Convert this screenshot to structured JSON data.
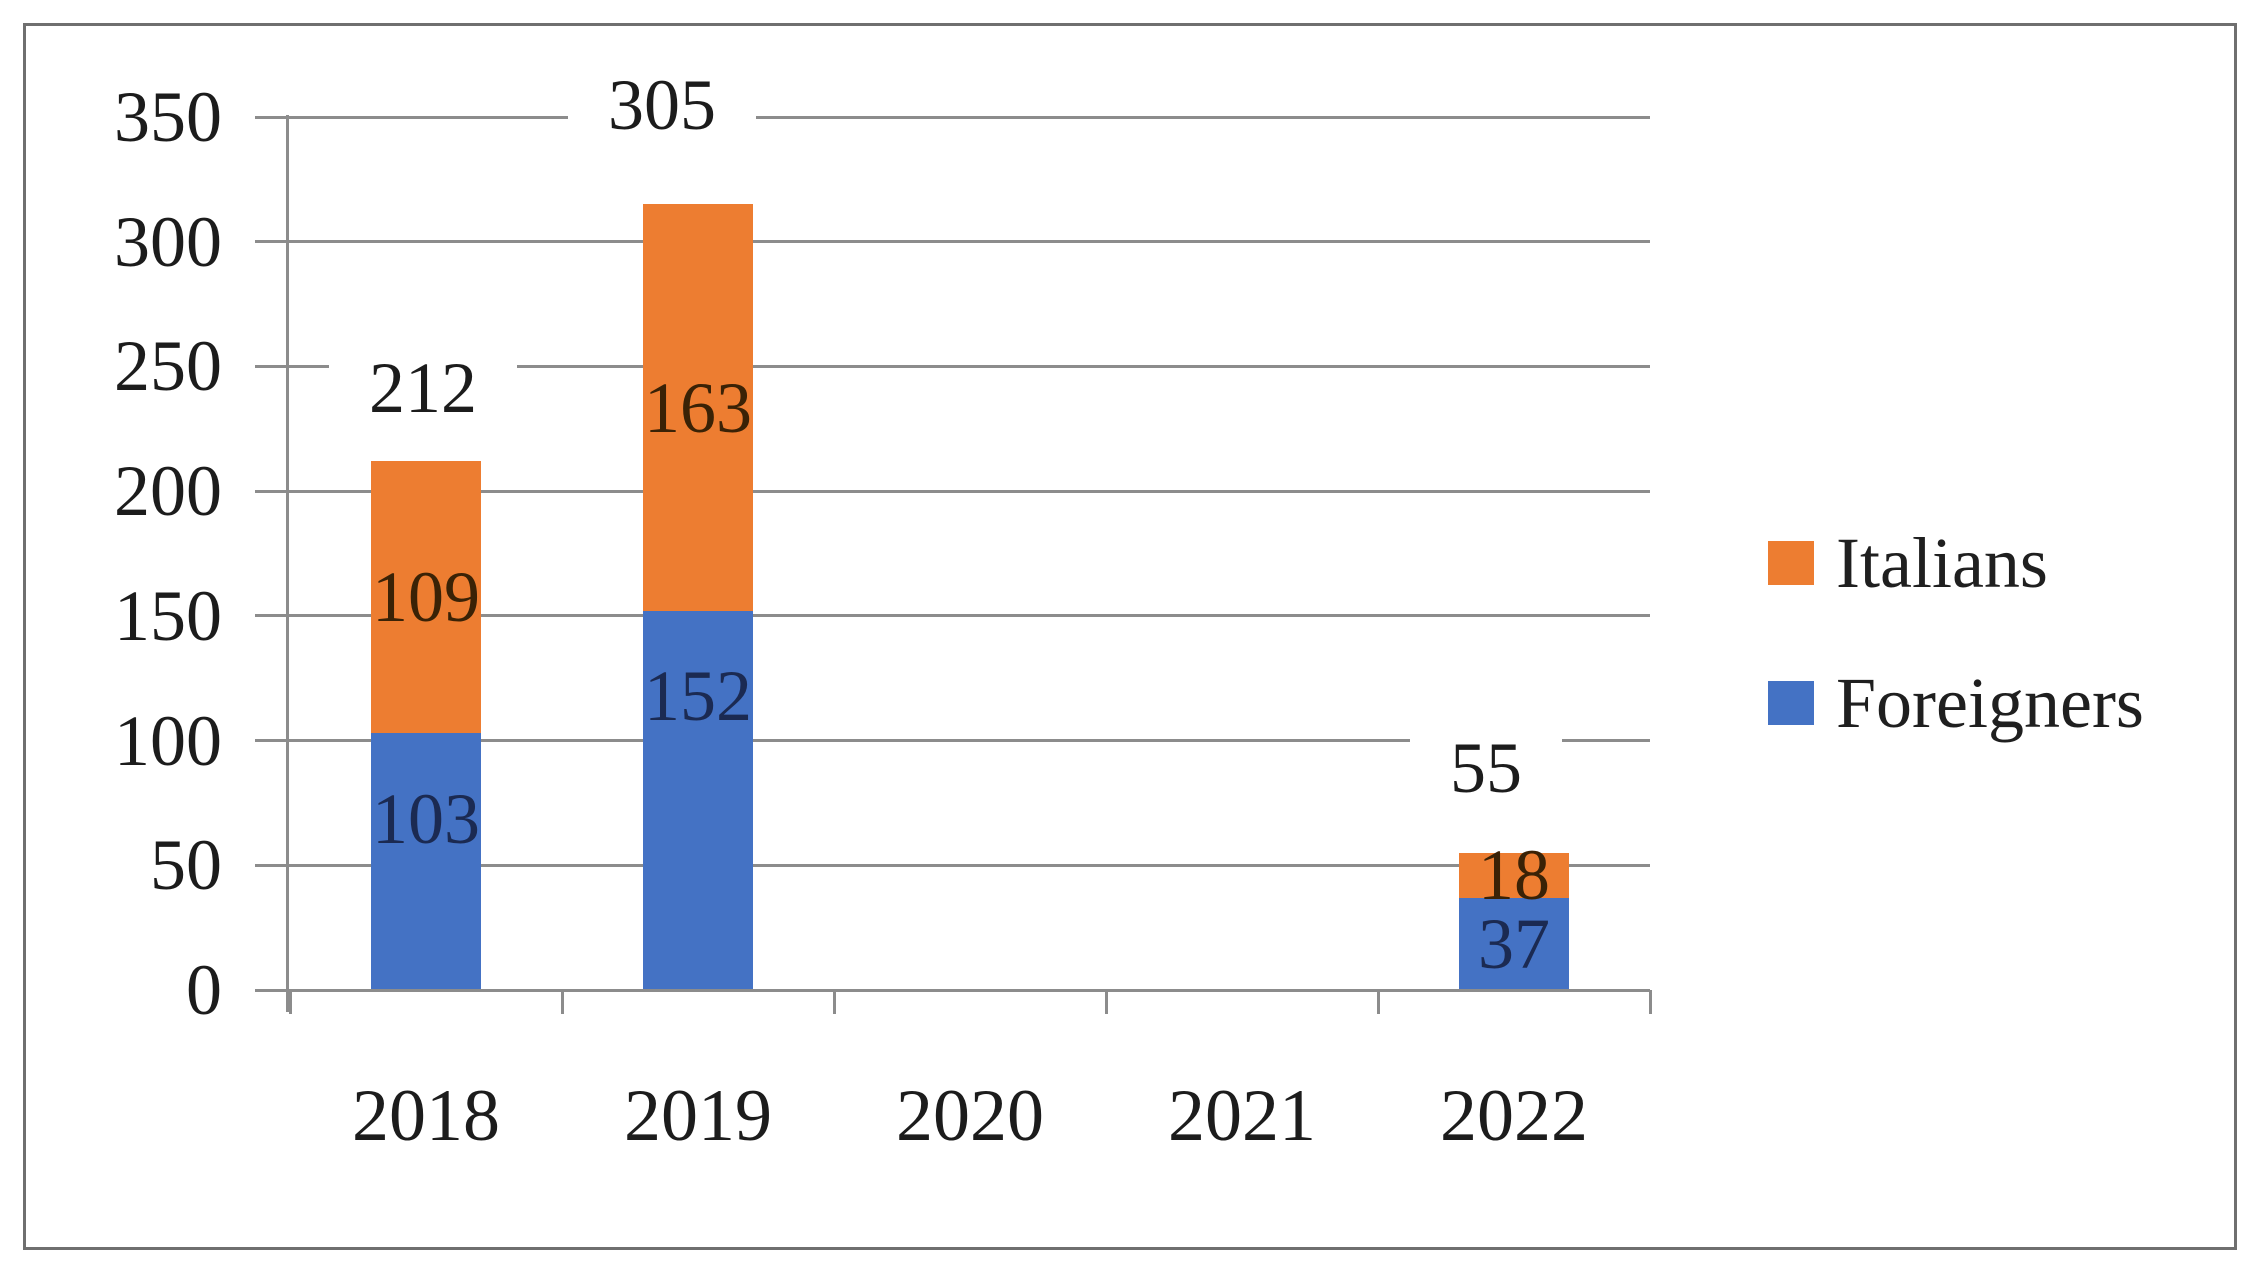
{
  "chart_data": {
    "type": "bar",
    "stacked": true,
    "title": "",
    "xlabel": "",
    "ylabel": "",
    "categories": [
      "2018",
      "2019",
      "2020",
      "2021",
      "2022"
    ],
    "series": [
      {
        "name": "Foreigners",
        "color": "#4472C4",
        "label_color": "#1b2a52",
        "values": [
          103,
          152,
          0,
          0,
          37
        ]
      },
      {
        "name": "Italians",
        "color": "#ED7D31",
        "label_color": "#3a2206",
        "values": [
          109,
          163,
          0,
          0,
          18
        ]
      }
    ],
    "total_labels": [
      "212",
      "305",
      "",
      "",
      "55"
    ],
    "y_ticks": [
      0,
      50,
      100,
      150,
      200,
      250,
      300,
      350
    ],
    "ylim": [
      0,
      350
    ],
    "grid": true,
    "legend_position": "right",
    "legend": [
      {
        "label": "Italians",
        "color": "#ED7D31"
      },
      {
        "label": "Foreigners",
        "color": "#4472C4"
      }
    ]
  },
  "colors": {
    "bar_blue": "#4472C4",
    "bar_orange": "#ED7D31",
    "gridline": "#8C8C8C",
    "axis": "#8C8C8C",
    "frame_border": "#6F6F6F",
    "text": "#1C1C1C",
    "background": "#FFFFFF"
  }
}
